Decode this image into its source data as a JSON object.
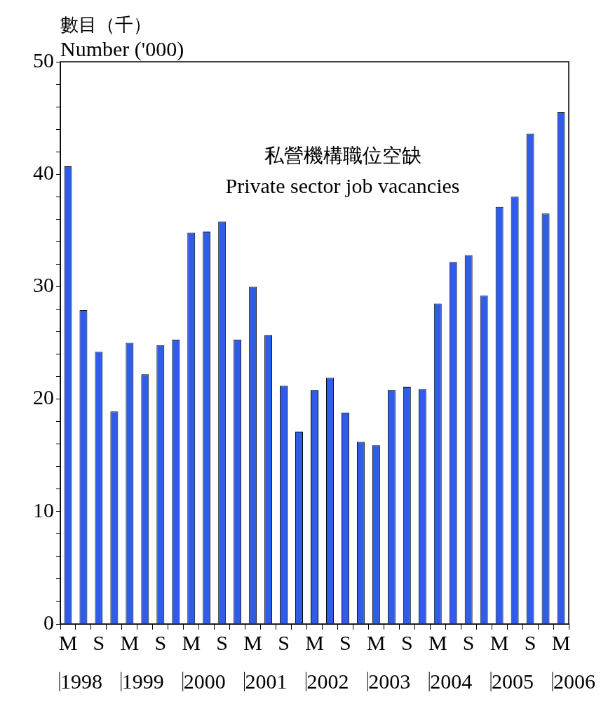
{
  "chart_data": {
    "type": "bar",
    "title": "私營機構職位空缺",
    "subtitle": "Private sector job vacancies",
    "ylabel": "數目（千）\nNumber ('000)",
    "categories": [
      "M",
      null,
      "S",
      null,
      "M",
      null,
      "S",
      null,
      "M",
      null,
      "S",
      null,
      "M",
      null,
      "S",
      null,
      "M",
      null,
      "S",
      null,
      "M",
      null,
      "S",
      null,
      "M",
      null,
      "S",
      null,
      "M",
      null,
      "S",
      null,
      "M"
    ],
    "values": [
      40.7,
      27.9,
      24.2,
      18.9,
      25.0,
      22.2,
      24.8,
      25.3,
      34.8,
      34.9,
      35.8,
      25.3,
      30.0,
      25.7,
      21.2,
      17.1,
      20.8,
      21.9,
      18.8,
      16.2,
      15.9,
      20.8,
      21.1,
      20.9,
      28.5,
      32.2,
      32.8,
      29.2,
      37.1,
      38.0,
      43.6,
      36.5,
      45.5
    ],
    "color": "#2f5ce8",
    "annotations": [
      "1998",
      "1999",
      "2000",
      "2001",
      "2002",
      "2003",
      "2004",
      "2005",
      "2006"
    ],
    "ylim": [
      0,
      50
    ],
    "yticks": [
      0,
      {
        "value": 2,
        "label": null
      },
      {
        "value": 4,
        "label": null
      },
      {
        "value": 6,
        "label": null
      },
      {
        "value": 8,
        "label": null
      },
      10,
      {
        "value": 12,
        "label": null
      },
      {
        "value": 14,
        "label": null
      },
      {
        "value": 16,
        "label": null
      },
      {
        "value": 18,
        "label": null
      },
      20,
      {
        "value": 22,
        "label": null
      },
      {
        "value": 24,
        "label": null
      },
      {
        "value": 26,
        "label": null
      },
      {
        "value": 28,
        "label": null
      },
      30,
      {
        "value": 32,
        "label": null
      },
      {
        "value": 34,
        "label": null
      },
      {
        "value": 36,
        "label": null
      },
      {
        "value": 38,
        "label": null
      },
      40,
      {
        "value": 42,
        "label": null
      },
      {
        "value": 44,
        "label": null
      },
      {
        "value": 46,
        "label": null
      },
      {
        "value": 48,
        "label": null
      },
      50
    ],
    "grid": false,
    "legend": false
  }
}
